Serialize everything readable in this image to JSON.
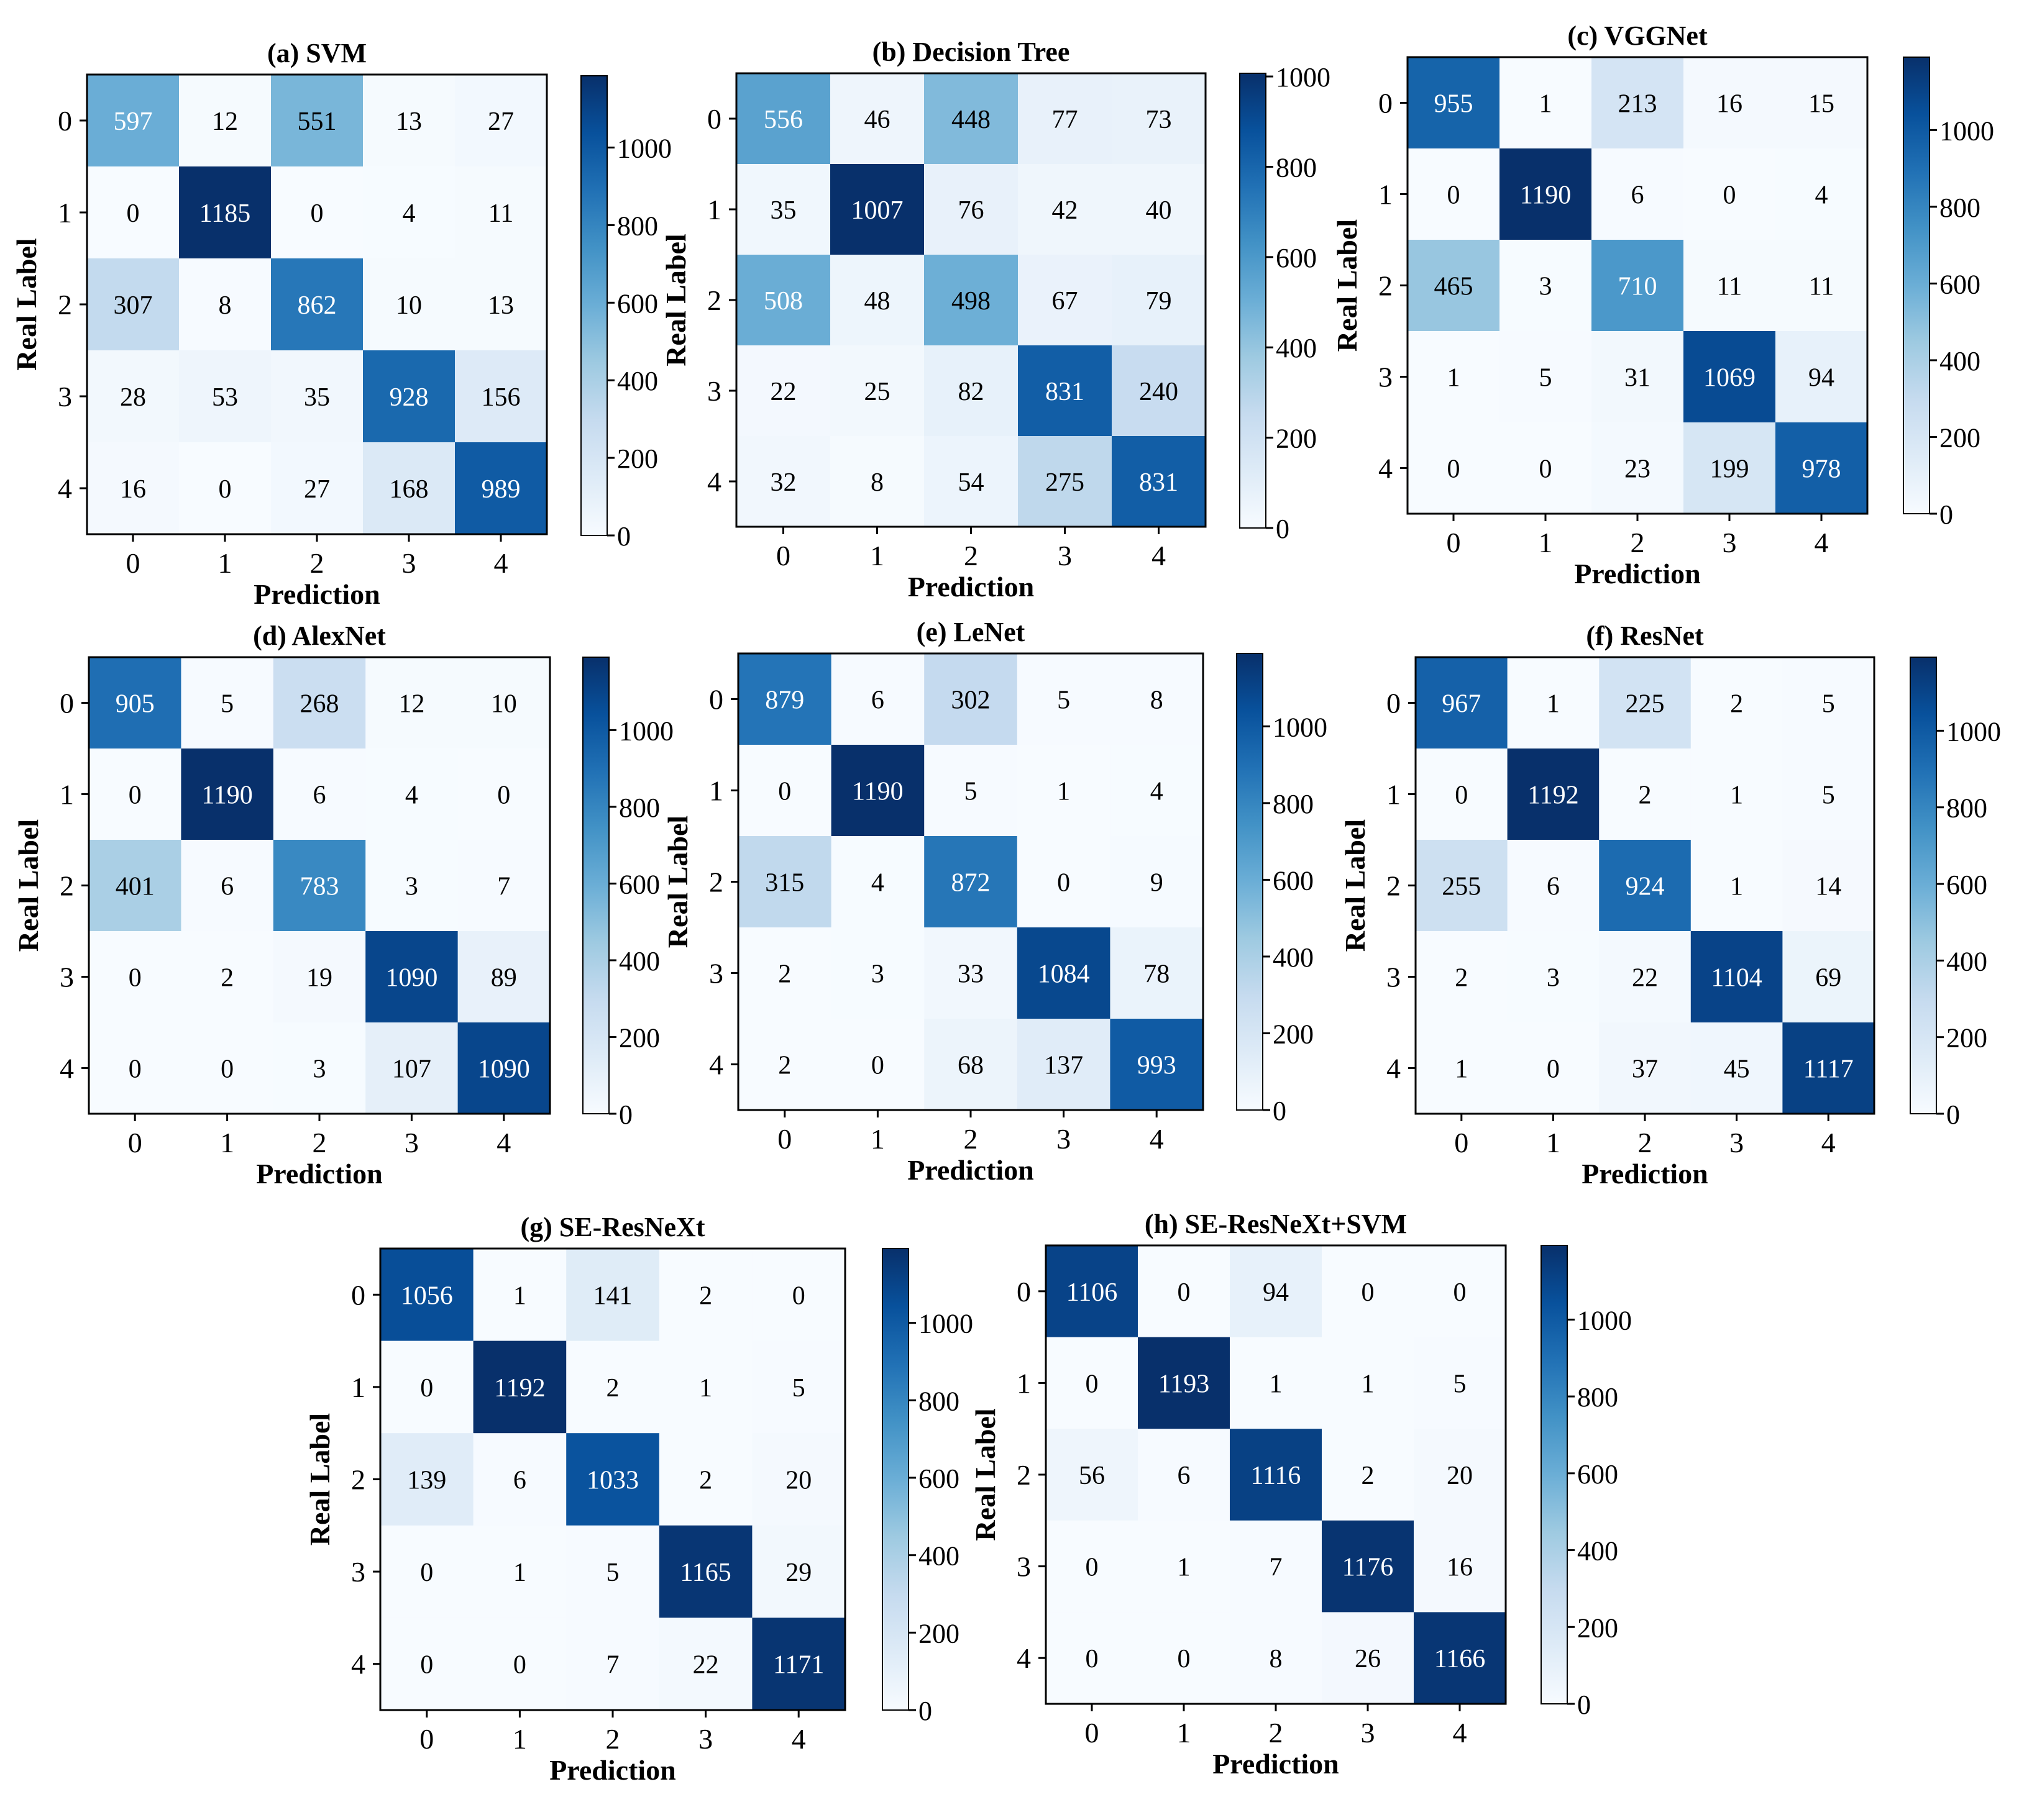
{
  "figure": {
    "cmap": [
      "#f7fbff",
      "#deebf7",
      "#c6dbef",
      "#9ecae1",
      "#6baed6",
      "#4292c6",
      "#2171b5",
      "#08519c",
      "#08306b"
    ]
  },
  "chart_data": [
    {
      "type": "heatmap",
      "title": "(a) SVM",
      "xlabel": "Prediction",
      "ylabel": "Real Label",
      "categories": [
        "0",
        "1",
        "2",
        "3",
        "4"
      ],
      "matrix": [
        [
          597,
          12,
          551,
          13,
          27
        ],
        [
          0,
          1185,
          0,
          4,
          11
        ],
        [
          307,
          8,
          862,
          10,
          13
        ],
        [
          28,
          53,
          35,
          928,
          156
        ],
        [
          16,
          0,
          27,
          168,
          989
        ]
      ],
      "vmin": 0,
      "vmax": 1185,
      "colorbar_ticks": [
        "0",
        "200",
        "400",
        "600",
        "800",
        "1000"
      ]
    },
    {
      "type": "heatmap",
      "title": "(b) Decision Tree",
      "xlabel": "Prediction",
      "ylabel": "Real Label",
      "categories": [
        "0",
        "1",
        "2",
        "3",
        "4"
      ],
      "matrix": [
        [
          556,
          46,
          448,
          77,
          73
        ],
        [
          35,
          1007,
          76,
          42,
          40
        ],
        [
          508,
          48,
          498,
          67,
          79
        ],
        [
          22,
          25,
          82,
          831,
          240
        ],
        [
          32,
          8,
          54,
          275,
          831
        ]
      ],
      "vmin": 0,
      "vmax": 1007,
      "colorbar_ticks": [
        "0",
        "200",
        "400",
        "600",
        "800",
        "1000"
      ]
    },
    {
      "type": "heatmap",
      "title": "(c) VGGNet",
      "xlabel": "Prediction",
      "ylabel": "Real Label",
      "categories": [
        "0",
        "1",
        "2",
        "3",
        "4"
      ],
      "matrix": [
        [
          955,
          1,
          213,
          16,
          15
        ],
        [
          0,
          1190,
          6,
          0,
          4
        ],
        [
          465,
          3,
          710,
          11,
          11
        ],
        [
          1,
          5,
          31,
          1069,
          94
        ],
        [
          0,
          0,
          23,
          199,
          978
        ]
      ],
      "vmin": 0,
      "vmax": 1190,
      "colorbar_ticks": [
        "0",
        "200",
        "400",
        "600",
        "800",
        "1000"
      ]
    },
    {
      "type": "heatmap",
      "title": "(d) AlexNet",
      "xlabel": "Prediction",
      "ylabel": "Real Label",
      "categories": [
        "0",
        "1",
        "2",
        "3",
        "4"
      ],
      "matrix": [
        [
          905,
          5,
          268,
          12,
          10
        ],
        [
          0,
          1190,
          6,
          4,
          0
        ],
        [
          401,
          6,
          783,
          3,
          7
        ],
        [
          0,
          2,
          19,
          1090,
          89
        ],
        [
          0,
          0,
          3,
          107,
          1090
        ]
      ],
      "vmin": 0,
      "vmax": 1190,
      "colorbar_ticks": [
        "0",
        "200",
        "400",
        "600",
        "800",
        "1000"
      ]
    },
    {
      "type": "heatmap",
      "title": "(e) LeNet",
      "xlabel": "Prediction",
      "ylabel": "Real Label",
      "categories": [
        "0",
        "1",
        "2",
        "3",
        "4"
      ],
      "matrix": [
        [
          879,
          6,
          302,
          5,
          8
        ],
        [
          0,
          1190,
          5,
          1,
          4
        ],
        [
          315,
          4,
          872,
          0,
          9
        ],
        [
          2,
          3,
          33,
          1084,
          78
        ],
        [
          2,
          0,
          68,
          137,
          993
        ]
      ],
      "vmin": 0,
      "vmax": 1190,
      "colorbar_ticks": [
        "0",
        "200",
        "400",
        "600",
        "800",
        "1000"
      ]
    },
    {
      "type": "heatmap",
      "title": "(f) ResNet",
      "xlabel": "Prediction",
      "ylabel": "Real Label",
      "categories": [
        "0",
        "1",
        "2",
        "3",
        "4"
      ],
      "matrix": [
        [
          967,
          1,
          225,
          2,
          5
        ],
        [
          0,
          1192,
          2,
          1,
          5
        ],
        [
          255,
          6,
          924,
          1,
          14
        ],
        [
          2,
          3,
          22,
          1104,
          69
        ],
        [
          1,
          0,
          37,
          45,
          1117
        ]
      ],
      "vmin": 0,
      "vmax": 1192,
      "colorbar_ticks": [
        "0",
        "200",
        "400",
        "600",
        "800",
        "1000"
      ]
    },
    {
      "type": "heatmap",
      "title": "(g) SE-ResNeXt",
      "xlabel": "Prediction",
      "ylabel": "Real Label",
      "categories": [
        "0",
        "1",
        "2",
        "3",
        "4"
      ],
      "matrix": [
        [
          1056,
          1,
          141,
          2,
          0
        ],
        [
          0,
          1192,
          2,
          1,
          5
        ],
        [
          139,
          6,
          1033,
          2,
          20
        ],
        [
          0,
          1,
          5,
          1165,
          29
        ],
        [
          0,
          0,
          7,
          22,
          1171
        ]
      ],
      "vmin": 0,
      "vmax": 1192,
      "colorbar_ticks": [
        "0",
        "200",
        "400",
        "600",
        "800",
        "1000"
      ]
    },
    {
      "type": "heatmap",
      "title": "(h) SE-ResNeXt+SVM",
      "xlabel": "Prediction",
      "ylabel": "Real Label",
      "categories": [
        "0",
        "1",
        "2",
        "3",
        "4"
      ],
      "matrix": [
        [
          1106,
          0,
          94,
          0,
          0
        ],
        [
          0,
          1193,
          1,
          1,
          5
        ],
        [
          56,
          6,
          1116,
          2,
          20
        ],
        [
          0,
          1,
          7,
          1176,
          16
        ],
        [
          0,
          0,
          8,
          26,
          1166
        ]
      ],
      "vmin": 0,
      "vmax": 1193,
      "colorbar_ticks": [
        "0",
        "200",
        "400",
        "600",
        "800",
        "1000"
      ]
    }
  ]
}
